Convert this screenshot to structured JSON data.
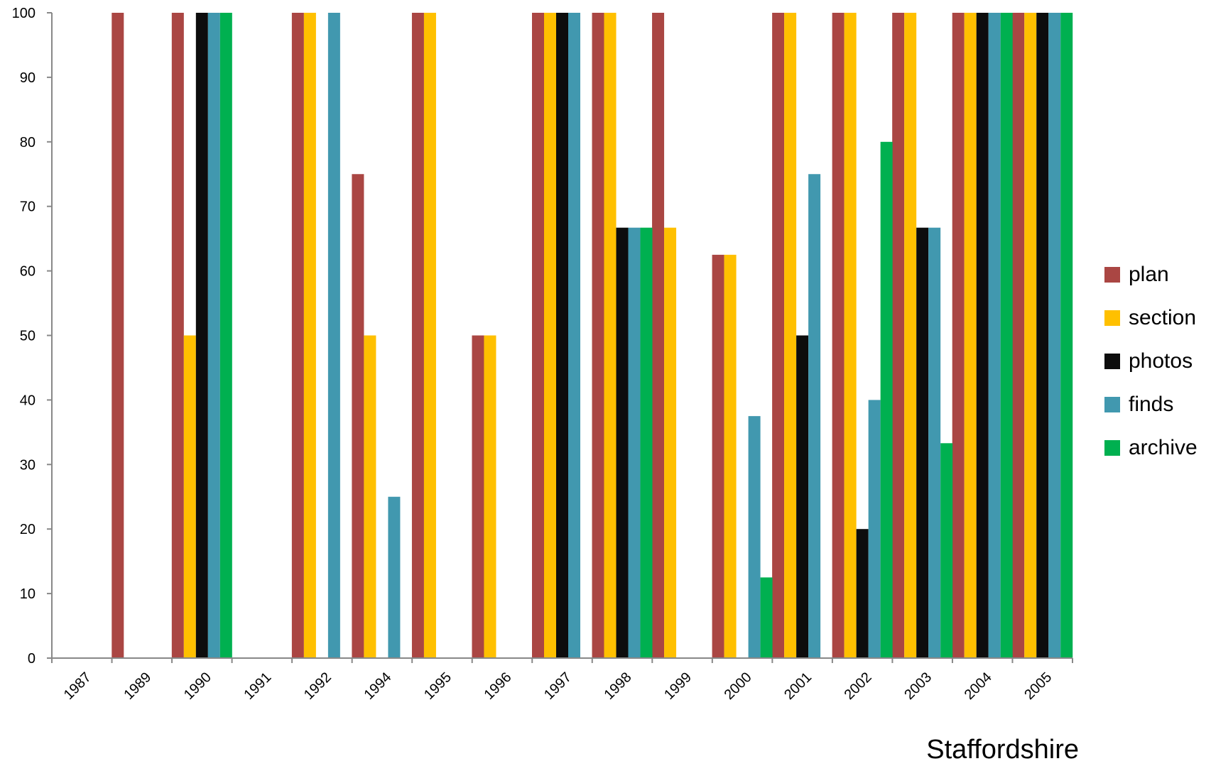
{
  "chart_data": {
    "type": "bar",
    "title": "Staffordshire",
    "xlabel": "",
    "ylabel": "",
    "ylim": [
      0,
      100
    ],
    "yticks": [
      0,
      10,
      20,
      30,
      40,
      50,
      60,
      70,
      80,
      90,
      100
    ],
    "grid": false,
    "legend_position": "right",
    "categories": [
      "1987",
      "1989",
      "1990",
      "1991",
      "1992",
      "1994",
      "1995",
      "1996",
      "1997",
      "1998",
      "1999",
      "2000",
      "2001",
      "2002",
      "2003",
      "2004",
      "2005"
    ],
    "series": [
      {
        "name": "plan",
        "color": "#AA4643",
        "values": [
          0,
          100,
          100,
          0,
          100,
          75,
          100,
          50,
          100,
          100,
          100,
          62.5,
          100,
          100,
          100,
          100,
          100
        ]
      },
      {
        "name": "section",
        "color": "#FFC000",
        "values": [
          0,
          0,
          50,
          0,
          100,
          50,
          100,
          50,
          100,
          100,
          66.7,
          62.5,
          100,
          100,
          100,
          100,
          100
        ]
      },
      {
        "name": "photos",
        "color": "#0D0D0D",
        "values": [
          0,
          0,
          100,
          0,
          0,
          0,
          0,
          0,
          100,
          66.7,
          0,
          0,
          50,
          20,
          66.7,
          100,
          100
        ]
      },
      {
        "name": "finds",
        "color": "#4198AF",
        "values": [
          0,
          0,
          100,
          0,
          100,
          25,
          0,
          0,
          100,
          66.7,
          0,
          37.5,
          75,
          40,
          66.7,
          100,
          100
        ]
      },
      {
        "name": "archive",
        "color": "#00B050",
        "values": [
          0,
          0,
          100,
          0,
          0,
          0,
          0,
          0,
          0,
          66.7,
          0,
          12.5,
          0,
          80,
          33.3,
          100,
          100
        ]
      }
    ]
  }
}
